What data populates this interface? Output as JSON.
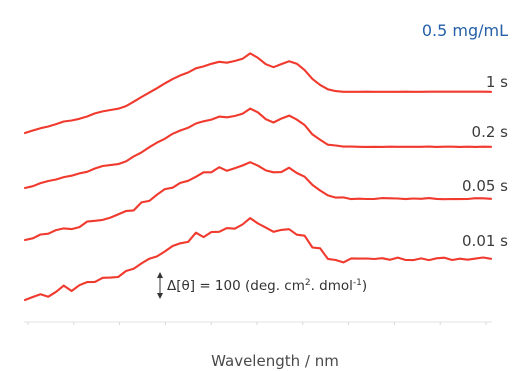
{
  "chart_data": {
    "type": "line",
    "concentration_label": "0.5 mg/mL",
    "xlabel": "Wavelength / nm",
    "x_tick_labels": [
      "",
      "",
      "",
      "",
      "",
      "",
      "",
      "",
      "",
      "",
      ""
    ],
    "scale_bar": {
      "prefix": "Δ[θ] = 100 (deg. cm",
      "sup1": "2",
      "mid": ". dmol",
      "sup2": "-1",
      "suffix": ")"
    },
    "series_color": "#f03a2e",
    "series": [
      {
        "name": "1 s",
        "noise": 0.4,
        "values": [
          0,
          3,
          6,
          9,
          12,
          15,
          17,
          19,
          22,
          26,
          29,
          31,
          32,
          36,
          42,
          48,
          54,
          60,
          66,
          72,
          77,
          81,
          86,
          89,
          92,
          95,
          94,
          96,
          99,
          106,
          100,
          92,
          88,
          92,
          96,
          92,
          84,
          72,
          64,
          58,
          56,
          55,
          55,
          55,
          55,
          55,
          55,
          55,
          55,
          55,
          55,
          55,
          55,
          55,
          55,
          55,
          55,
          55,
          55,
          55,
          55
        ]
      },
      {
        "name": "0.2 s",
        "noise": 0.8,
        "values": [
          0,
          3,
          6,
          9,
          12,
          15,
          17,
          19,
          22,
          26,
          29,
          31,
          32,
          36,
          42,
          48,
          54,
          60,
          66,
          72,
          77,
          81,
          86,
          89,
          92,
          95,
          94,
          96,
          99,
          106,
          100,
          92,
          88,
          92,
          96,
          92,
          84,
          72,
          64,
          58,
          56,
          55,
          55,
          55,
          55,
          55,
          55,
          55,
          55,
          55,
          55,
          55,
          55,
          55,
          55,
          55,
          55,
          55,
          55,
          55,
          55
        ]
      },
      {
        "name": "0.05 s",
        "noise": 2.8,
        "values": [
          0,
          3,
          6,
          9,
          12,
          15,
          17,
          19,
          22,
          26,
          29,
          31,
          32,
          36,
          42,
          48,
          54,
          60,
          66,
          72,
          77,
          81,
          86,
          89,
          92,
          95,
          94,
          96,
          99,
          106,
          100,
          92,
          88,
          92,
          96,
          92,
          84,
          72,
          64,
          58,
          56,
          55,
          55,
          55,
          55,
          55,
          55,
          55,
          55,
          55,
          55,
          55,
          55,
          55,
          55,
          55,
          55,
          55,
          55,
          55,
          55
        ]
      },
      {
        "name": "0.01 s",
        "noise": 5.2,
        "values": [
          0,
          3,
          6,
          9,
          12,
          15,
          17,
          19,
          22,
          26,
          29,
          31,
          32,
          36,
          42,
          48,
          54,
          60,
          66,
          72,
          77,
          81,
          86,
          89,
          92,
          95,
          94,
          96,
          99,
          106,
          100,
          92,
          88,
          92,
          96,
          92,
          84,
          72,
          64,
          58,
          56,
          55,
          55,
          55,
          55,
          55,
          55,
          55,
          55,
          55,
          55,
          55,
          55,
          55,
          55,
          55,
          55,
          55,
          55,
          55,
          55
        ]
      }
    ]
  }
}
